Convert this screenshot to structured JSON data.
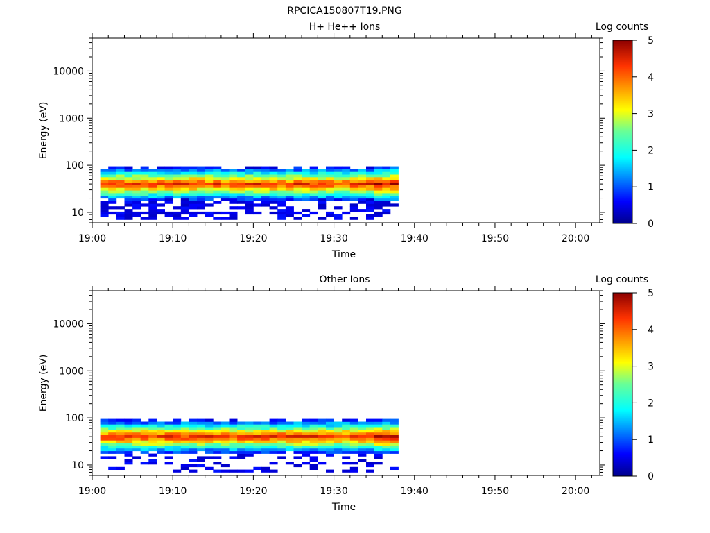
{
  "figure": {
    "title": "RPCICA150807T19.PNG"
  },
  "colorbar": {
    "label": "Log counts",
    "ticks": [
      "0",
      "1",
      "2",
      "3",
      "4",
      "5"
    ],
    "range": [
      0,
      5
    ],
    "colormap": "jet"
  },
  "chart_data": [
    {
      "type": "heatmap",
      "title": "H+ He++ Ions",
      "xlabel": "Time",
      "ylabel": "Energy (eV)",
      "x_ticks": [
        "19:00",
        "19:10",
        "19:20",
        "19:30",
        "19:40",
        "19:50",
        "20:00"
      ],
      "y_ticks": [
        "10",
        "100",
        "1000",
        "10000"
      ],
      "y_scale": "log",
      "xlim": [
        "19:00",
        "20:03"
      ],
      "ylim": [
        6,
        50000
      ],
      "data_time_range": [
        "19:01",
        "19:38"
      ],
      "data_energy_range_ev": [
        7,
        95
      ],
      "peak_energy_ev": 40,
      "colorbar": {
        "label": "Log counts",
        "range": [
          0,
          5
        ]
      }
    },
    {
      "type": "heatmap",
      "title": "Other Ions",
      "xlabel": "Time",
      "ylabel": "Energy (eV)",
      "x_ticks": [
        "19:00",
        "19:10",
        "19:20",
        "19:30",
        "19:40",
        "19:50",
        "20:00"
      ],
      "y_ticks": [
        "10",
        "100",
        "1000",
        "10000"
      ],
      "y_scale": "log",
      "xlim": [
        "19:00",
        "20:03"
      ],
      "ylim": [
        6,
        50000
      ],
      "data_time_range": [
        "19:01",
        "19:38"
      ],
      "data_energy_range_ev": [
        7,
        95
      ],
      "peak_energy_ev": 40,
      "colorbar": {
        "label": "Log counts",
        "range": [
          0,
          5
        ]
      }
    }
  ]
}
